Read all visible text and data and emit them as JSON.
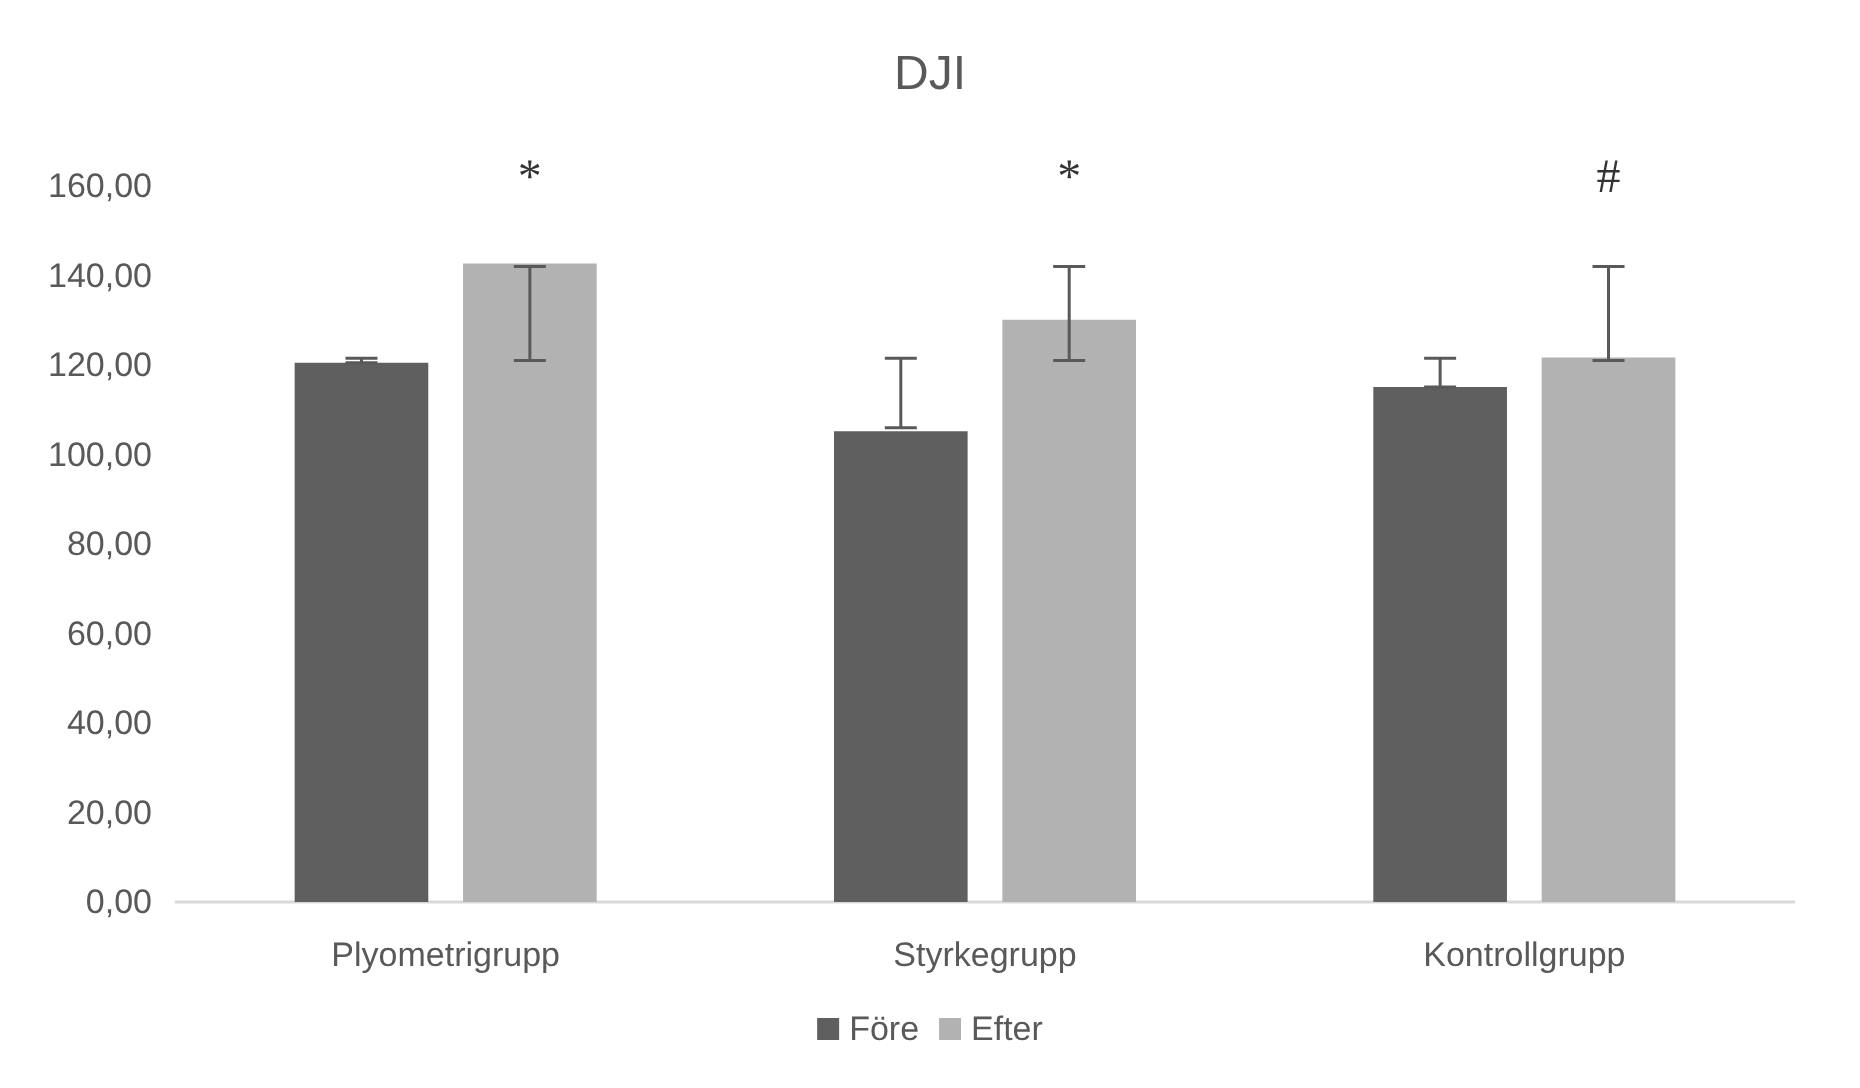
{
  "chart_data": {
    "type": "bar",
    "title": "DJI",
    "categories": [
      "Plyometrigrupp",
      "Styrkegrupp",
      "Kontrollgrupp"
    ],
    "series": [
      {
        "name": "Före",
        "color": "#5f5f5f",
        "values": [
          120.5,
          105.2,
          115.1
        ],
        "errors": [
          [
            120.5,
            121.5
          ],
          [
            106,
            121.5
          ],
          [
            115.1,
            121.5
          ]
        ]
      },
      {
        "name": "Efter",
        "color": "#b2b2b2",
        "values": [
          142.7,
          130.1,
          121.7
        ],
        "errors": [
          [
            121,
            142
          ],
          [
            121,
            142
          ],
          [
            121,
            142
          ]
        ]
      }
    ],
    "ylim": [
      0,
      160
    ],
    "yticks": [
      {
        "value": 0,
        "label": "0,00"
      },
      {
        "value": 20,
        "label": "20,00"
      },
      {
        "value": 40,
        "label": "40,00"
      },
      {
        "value": 60,
        "label": "60,00"
      },
      {
        "value": 80,
        "label": "80,00"
      },
      {
        "value": 100,
        "label": "100,00"
      },
      {
        "value": 120,
        "label": "120,00"
      },
      {
        "value": 140,
        "label": "140,00"
      },
      {
        "value": 160,
        "label": "160,00"
      }
    ],
    "annotations": [
      "*",
      "*",
      "#"
    ],
    "grid": false,
    "legend": "bottom"
  }
}
